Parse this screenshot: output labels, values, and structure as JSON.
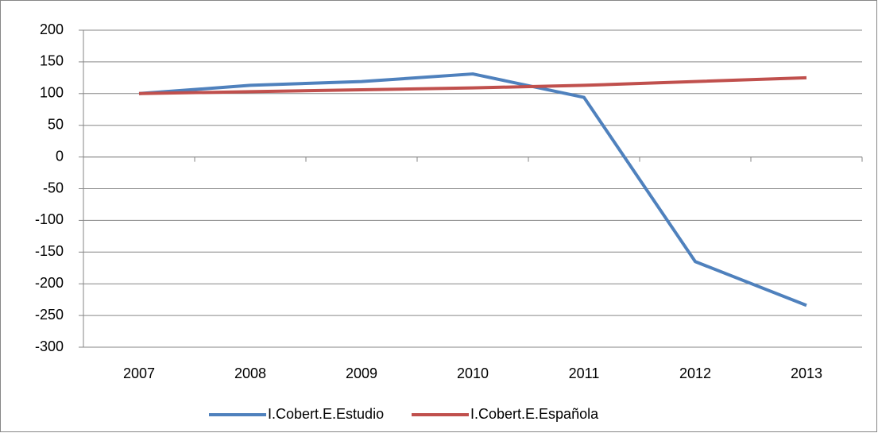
{
  "chart_data": {
    "type": "line",
    "categories": [
      "2007",
      "2008",
      "2009",
      "2010",
      "2011",
      "2012",
      "2013"
    ],
    "series": [
      {
        "name": "I.Cobert.E.Estudio",
        "color": "#4f81bd",
        "values": [
          100,
          113,
          119,
          131,
          94,
          -165,
          -234
        ]
      },
      {
        "name": "I.Cobert.E.Española",
        "color": "#c0504d",
        "values": [
          100,
          103,
          106,
          109,
          113,
          119,
          125
        ]
      }
    ],
    "ylim": [
      -300,
      200
    ],
    "yticks": [
      -300,
      -250,
      -200,
      -150,
      -100,
      -50,
      0,
      50,
      100,
      150,
      200
    ],
    "grid": true,
    "legend": "bottom"
  }
}
